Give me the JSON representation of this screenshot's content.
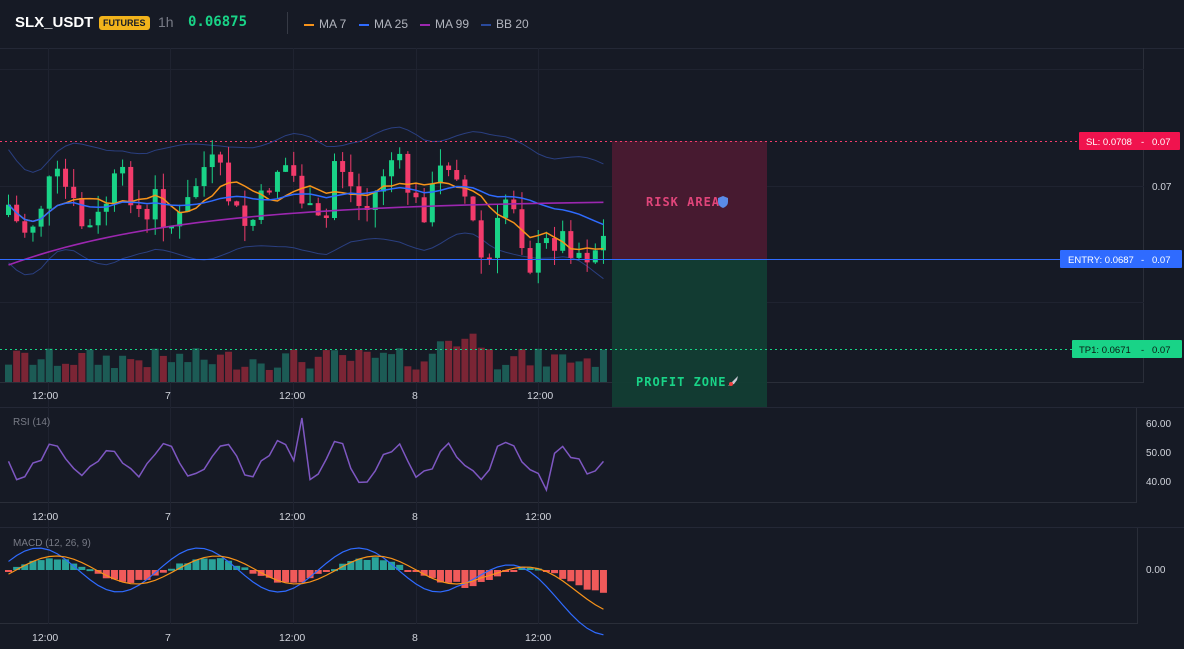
{
  "header": {
    "symbol": "SLX_USDT",
    "badge": "FUTURES",
    "interval": "1h",
    "price": "0.06875",
    "legend": [
      {
        "label": "MA 7",
        "color": "#f7931a"
      },
      {
        "label": "MA 25",
        "color": "#2f6bff"
      },
      {
        "label": "MA 99",
        "color": "#9c27b0"
      },
      {
        "label": "BB 20",
        "color": "#2a4a9c"
      }
    ]
  },
  "colors": {
    "up": "#19d387",
    "down": "#f23b6b",
    "vol_up": "#1c5b55",
    "vol_down": "#7b2535"
  },
  "time_axis": [
    "12:00",
    "7",
    "12:00",
    "8",
    "12:00"
  ],
  "price_axis": {
    "tick_070": "0.07"
  },
  "levels": {
    "sl": {
      "label": "SL: 0.0708",
      "value": "0.07"
    },
    "entry": {
      "label": "ENTRY: 0.0687",
      "value": "0.07"
    },
    "tp1": {
      "label": "TP1: 0.0671",
      "value": "0.07"
    }
  },
  "zones": {
    "risk": "RISK AREA",
    "profit": "PROFIT ZONE"
  },
  "rsi": {
    "title": "RSI (14)",
    "ticks": [
      "60.00",
      "50.00",
      "40.00"
    ]
  },
  "macd": {
    "title": "MACD (12, 26, 9)",
    "ticks": [
      "0.00"
    ]
  }
}
